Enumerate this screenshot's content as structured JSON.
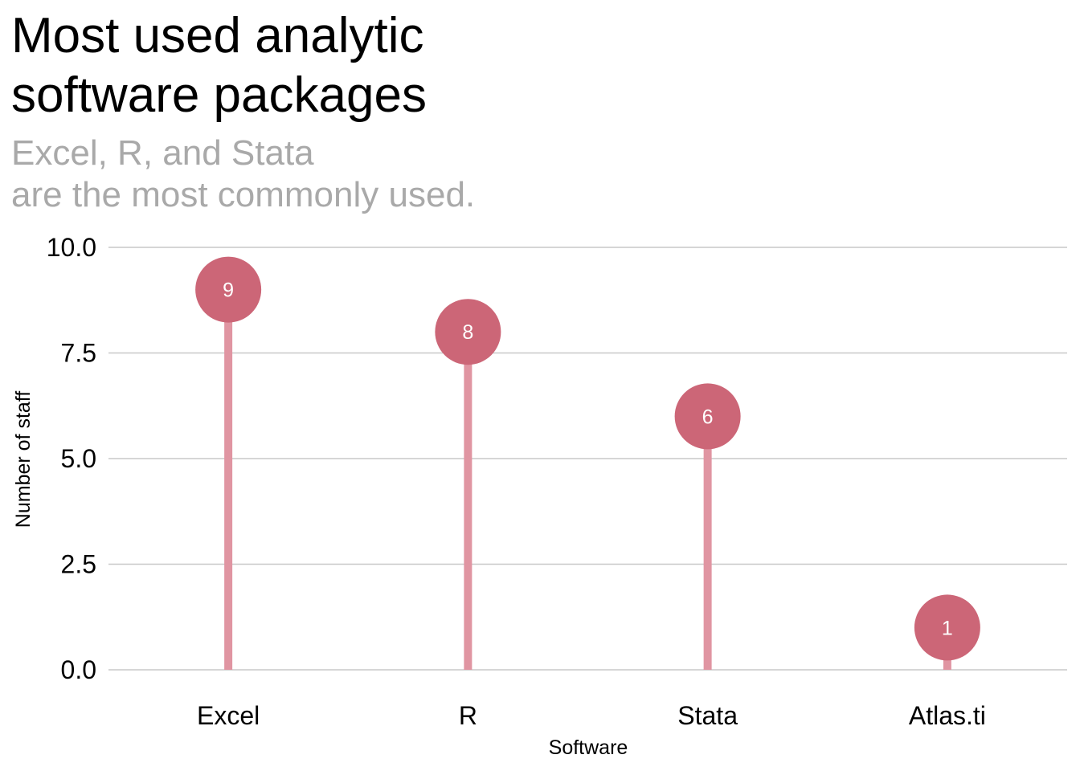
{
  "title_lines": [
    "Most used analytic",
    "software packages"
  ],
  "subtitle_lines": [
    "Excel, R, and Stata",
    "are the most commonly used."
  ],
  "colors": {
    "point": "#cc6677",
    "stem": "#e095a2",
    "grid": "#c8c8c8",
    "subtitle": "#a9a9a9"
  },
  "chart_data": {
    "type": "lollipop",
    "categories": [
      "Excel",
      "R",
      "Stata",
      "Atlas.ti"
    ],
    "values": [
      9,
      8,
      6,
      1
    ],
    "data_labels": [
      "9",
      "8",
      "6",
      "1"
    ],
    "xlabel": "Software",
    "ylabel": "Number of staff",
    "ylim": [
      0,
      10
    ],
    "yticks": [
      0,
      2.5,
      5,
      7.5,
      10
    ],
    "ytick_labels": [
      "0.0",
      "2.5",
      "5.0",
      "7.5",
      "10.0"
    ],
    "grid": "horizontal",
    "legend": "none"
  }
}
